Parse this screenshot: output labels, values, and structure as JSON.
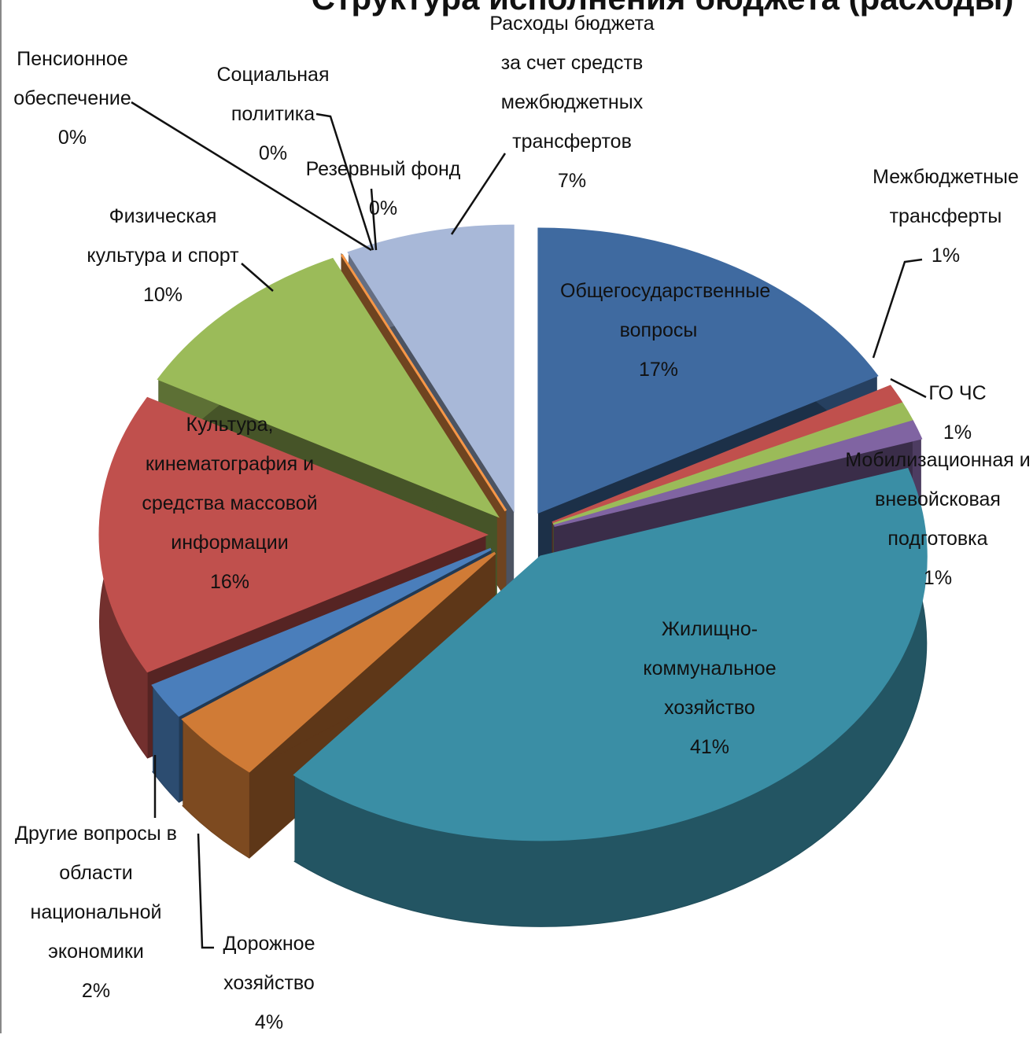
{
  "chart_data": {
    "type": "pie3d",
    "title": "Структура исполнения бюджета (расходы)",
    "categories": [
      "Общегосударственные вопросы",
      "Межбюджетные трансферты",
      "ГО ЧС",
      "Мобилизационная и вневойсковая подготовка",
      "Жилищно-коммунальное хозяйство",
      "Дорожное хозяйство",
      "Другие вопросы в области национальной экономики",
      "Культура, кинематография и средства массовой информации",
      "Физическая культура и спорт",
      "Пенсионное обеспечение",
      "Социальная политика",
      "Резервный фонд",
      "Расходы бюджета за счет средств межбюджетных трансфертов"
    ],
    "values": [
      17,
      1,
      1,
      1,
      41,
      4,
      2,
      16,
      10,
      0,
      0,
      0,
      7
    ],
    "value_labels": [
      "17%",
      "1%",
      "1%",
      "1%",
      "41%",
      "4%",
      "2%",
      "16%",
      "10%",
      "0%",
      "0%",
      "0%",
      "7%"
    ],
    "colors": [
      "#3f6aa0",
      "#c0504d",
      "#9bbb59",
      "#8064a2",
      "#3a8ea5",
      "#d07b36",
      "#4a7ebb",
      "#c0504d",
      "#9bbb59",
      "#8064a2",
      "#4bacc6",
      "#f79646",
      "#a8b8d8"
    ]
  }
}
